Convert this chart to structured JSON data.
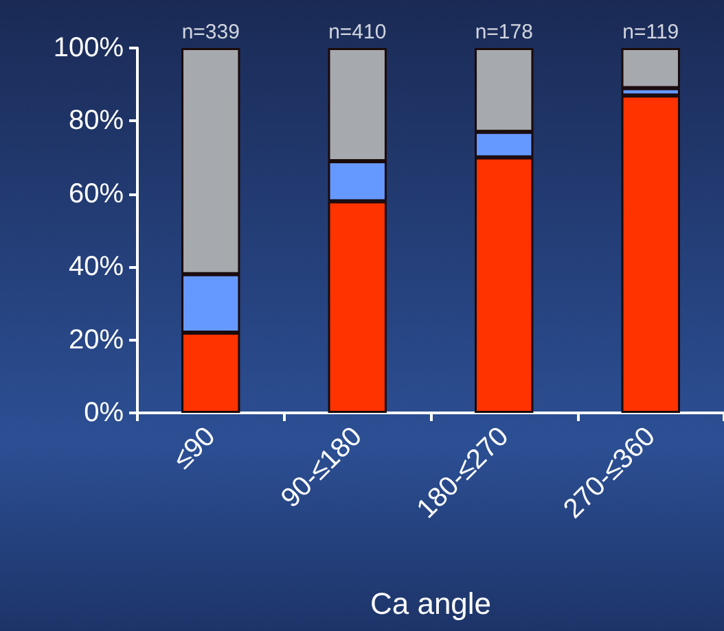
{
  "chart_data": {
    "type": "bar",
    "stacked": true,
    "xlabel": "Ca angle",
    "categories": [
      "≤90",
      "90-≤180",
      "180-≤270",
      "270-≤360"
    ],
    "series": [
      {
        "color": "#ff3300",
        "values": [
          22,
          58,
          70,
          87
        ]
      },
      {
        "color": "#6699ff",
        "values": [
          16,
          11,
          7,
          2
        ]
      },
      {
        "color": "#a6a9ad",
        "values": [
          62,
          31,
          23,
          11
        ]
      }
    ],
    "ylim": [
      0,
      100
    ],
    "yticks": [
      {
        "value": 0,
        "label": "0%"
      },
      {
        "value": 20,
        "label": "20%"
      },
      {
        "value": 40,
        "label": "40%"
      },
      {
        "value": 60,
        "label": "60%"
      },
      {
        "value": 80,
        "label": "80%"
      },
      {
        "value": 100,
        "label": "100%"
      }
    ],
    "annotations": [
      {
        "text": "n=339",
        "x": "≤90",
        "y": 100
      },
      {
        "text": "n=410",
        "x": "90-≤180",
        "y": 100
      },
      {
        "text": "n=178",
        "x": "180-≤270",
        "y": 100
      },
      {
        "text": "n=119",
        "x": "270-≤360",
        "y": 100
      }
    ],
    "grid": false
  }
}
